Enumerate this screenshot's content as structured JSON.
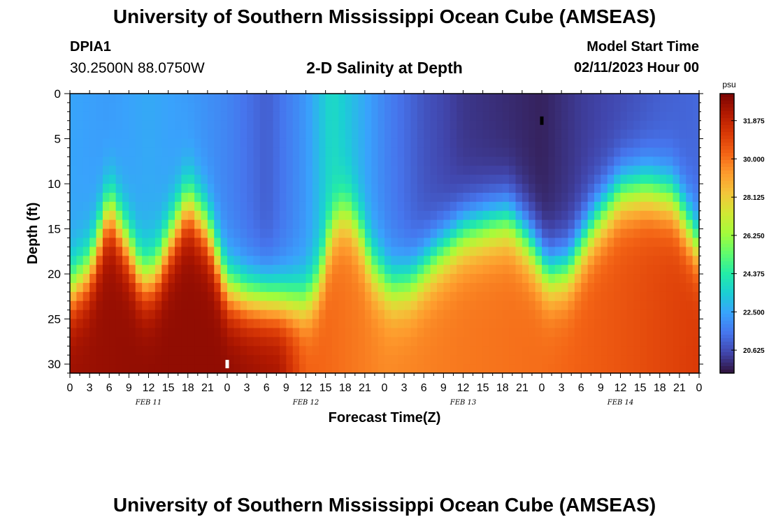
{
  "page": {
    "title_top": "University of Southern Mississippi Ocean Cube (AMSEAS)",
    "title_bottom": "University of Southern Mississippi Ocean Cube (AMSEAS)",
    "station_id": "DPIA1",
    "coordinates": "30.2500N  88.0750W",
    "model_start_label": "Model Start Time",
    "model_start_value": "02/11/2023 Hour 00"
  },
  "chart_data": {
    "type": "heatmap",
    "title": "2-D Salinity at Depth",
    "xlabel": "Forecast Time(Z)",
    "ylabel": "Depth (ft)",
    "x_tick_labels": [
      "0",
      "3",
      "6",
      "9",
      "12",
      "15",
      "18",
      "21",
      "0",
      "3",
      "6",
      "9",
      "12",
      "15",
      "18",
      "21",
      "0",
      "3",
      "6",
      "9",
      "12",
      "15",
      "18",
      "21",
      "0",
      "3",
      "6",
      "9",
      "12",
      "15",
      "18",
      "21",
      "0"
    ],
    "date_labels": [
      "FEB 11",
      "FEB 12",
      "FEB 13",
      "FEB 14"
    ],
    "xlim_hours": [
      0,
      96
    ],
    "y_ticks": [
      0,
      5,
      10,
      15,
      20,
      25,
      30
    ],
    "ylim_ft": [
      0,
      31
    ],
    "colorbar": {
      "unit": "psu",
      "ticks": [
        "31.875",
        "30.000",
        "28.125",
        "26.250",
        "24.375",
        "22.500",
        "20.625"
      ],
      "min": 19.5,
      "max": 33.2
    },
    "color_stops": [
      "#30123b",
      "#4145ab",
      "#4675ed",
      "#39a2fc",
      "#1bcfd4",
      "#24eca6",
      "#61fc6c",
      "#a4fc3b",
      "#d1e834",
      "#f3c63a",
      "#fe9b2d",
      "#f36315",
      "#d93806",
      "#b11901",
      "#7a0403"
    ],
    "surface_salinity_psu": [
      {
        "hour": 0,
        "value": 22.5
      },
      {
        "hour": 6,
        "value": 22.3
      },
      {
        "hour": 12,
        "value": 22.6
      },
      {
        "hour": 18,
        "value": 22.3
      },
      {
        "hour": 24,
        "value": 21.8
      },
      {
        "hour": 30,
        "value": 21.0
      },
      {
        "hour": 36,
        "value": 22.2
      },
      {
        "hour": 40,
        "value": 23.8
      },
      {
        "hour": 44,
        "value": 22.8
      },
      {
        "hour": 48,
        "value": 21.8
      },
      {
        "hour": 54,
        "value": 20.8
      },
      {
        "hour": 60,
        "value": 20.2
      },
      {
        "hour": 66,
        "value": 20.0
      },
      {
        "hour": 72,
        "value": 19.8
      },
      {
        "hour": 78,
        "value": 20.3
      },
      {
        "hour": 84,
        "value": 20.6
      },
      {
        "hour": 90,
        "value": 21.0
      },
      {
        "hour": 96,
        "value": 21.2
      }
    ],
    "bottom_salinity_psu": [
      {
        "hour": 0,
        "value": 32.6
      },
      {
        "hour": 12,
        "value": 32.8
      },
      {
        "hour": 24,
        "value": 32.8
      },
      {
        "hour": 32,
        "value": 32.4
      },
      {
        "hour": 36,
        "value": 30.4
      },
      {
        "hour": 48,
        "value": 29.6
      },
      {
        "hour": 60,
        "value": 29.9
      },
      {
        "hour": 72,
        "value": 30.1
      },
      {
        "hour": 84,
        "value": 30.6
      },
      {
        "hour": 96,
        "value": 31.2
      }
    ],
    "halocline_depth_ft": [
      {
        "hour": 0,
        "value": 22.0
      },
      {
        "hour": 3,
        "value": 19.5
      },
      {
        "hour": 6,
        "value": 12.5
      },
      {
        "hour": 9,
        "value": 17.0
      },
      {
        "hour": 11,
        "value": 20.5
      },
      {
        "hour": 13,
        "value": 20.0
      },
      {
        "hour": 16,
        "value": 15.0
      },
      {
        "hour": 18,
        "value": 12.0
      },
      {
        "hour": 21,
        "value": 15.0
      },
      {
        "hour": 24,
        "value": 21.5
      },
      {
        "hour": 27,
        "value": 22.5
      },
      {
        "hour": 33,
        "value": 23.0
      },
      {
        "hour": 36,
        "value": 23.0
      },
      {
        "hour": 38,
        "value": 21.0
      },
      {
        "hour": 40,
        "value": 15.0
      },
      {
        "hour": 42,
        "value": 13.0
      },
      {
        "hour": 44,
        "value": 15.0
      },
      {
        "hour": 46,
        "value": 19.0
      },
      {
        "hour": 49,
        "value": 21.5
      },
      {
        "hour": 52,
        "value": 21.0
      },
      {
        "hour": 56,
        "value": 18.0
      },
      {
        "hour": 60,
        "value": 15.5
      },
      {
        "hour": 64,
        "value": 14.5
      },
      {
        "hour": 67,
        "value": 14.0
      },
      {
        "hour": 70,
        "value": 16.5
      },
      {
        "hour": 73,
        "value": 20.0
      },
      {
        "hour": 76,
        "value": 19.5
      },
      {
        "hour": 80,
        "value": 14.5
      },
      {
        "hour": 84,
        "value": 11.0
      },
      {
        "hour": 88,
        "value": 10.5
      },
      {
        "hour": 92,
        "value": 11.5
      },
      {
        "hour": 96,
        "value": 17.0
      }
    ],
    "markers": [
      {
        "hour": 24,
        "depth_ft": 30,
        "color": "#ffffff"
      },
      {
        "hour": 72,
        "depth_ft": 3,
        "color": "#000000"
      }
    ]
  }
}
